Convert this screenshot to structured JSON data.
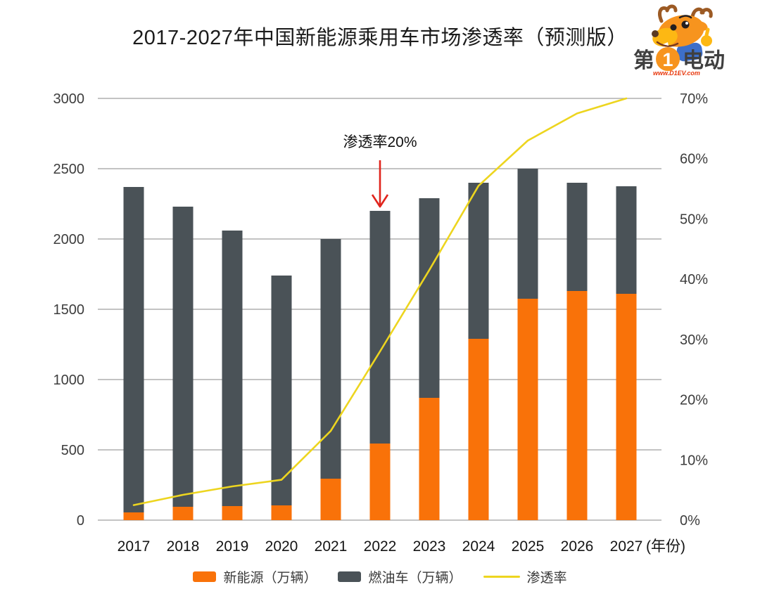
{
  "title": "2017-2027年中国新能源乘用车市场渗透率（预测版）",
  "logo": {
    "brand_prefix": "第",
    "brand_number": "1",
    "brand_suffix": "电动",
    "site_url": "www.D1EV.com"
  },
  "annotation": {
    "text": "渗透率20%",
    "target_year": "2022"
  },
  "legend": [
    {
      "label": "新能源（万辆）",
      "swatch": "bar",
      "color": "#F97209"
    },
    {
      "label": "燃油车（万辆）",
      "swatch": "bar",
      "color": "#4A5257"
    },
    {
      "label": "渗透率",
      "swatch": "line",
      "color": "#EDD51F"
    }
  ],
  "colors": {
    "nev": "#F97209",
    "fuel": "#4A5257",
    "line": "#EDD51F",
    "grid": "#AFAFAF",
    "red": "#E0241C",
    "axis_text": "#3d3d3d"
  },
  "chart_data": {
    "type": "bar",
    "subtype": "stacked-bars-with-line-overlay",
    "title": "2017-2027年中国新能源乘用车市场渗透率（预测版）",
    "categories": [
      "2017",
      "2018",
      "2019",
      "2020",
      "2021",
      "2022",
      "2023",
      "2024",
      "2025",
      "2026",
      "2027"
    ],
    "x_axis_suffix": "(年份)",
    "series": [
      {
        "name": "新能源（万辆）",
        "type": "bar",
        "stack": true,
        "color": "#F97209",
        "values": [
          55,
          95,
          100,
          105,
          295,
          545,
          870,
          1290,
          1575,
          1630,
          1610
        ]
      },
      {
        "name": "燃油车（万辆）",
        "type": "bar",
        "stack": true,
        "color": "#4A5257",
        "values": [
          2315,
          2135,
          1960,
          1635,
          1705,
          1655,
          1420,
          1110,
          925,
          770,
          765
        ]
      },
      {
        "name": "渗透率",
        "type": "line",
        "axis": "right",
        "color": "#EDD51F",
        "values_percent": [
          2.5,
          4.2,
          5.6,
          6.7,
          14.8,
          28,
          41.5,
          55.5,
          63,
          67.5,
          70
        ]
      }
    ],
    "stacked_totals": [
      2370,
      2230,
      2060,
      1740,
      2000,
      2200,
      2290,
      2400,
      2500,
      2400,
      2375
    ],
    "left_axis": {
      "ticks": [
        0,
        500,
        1000,
        1500,
        2000,
        2500,
        3000
      ],
      "range": [
        0,
        3000
      ]
    },
    "right_axis": {
      "ticks": [
        "0%",
        "10%",
        "20%",
        "30%",
        "40%",
        "50%",
        "60%",
        "70%"
      ],
      "range_percent": [
        0,
        70
      ]
    },
    "grid": true,
    "legend_position": "bottom"
  }
}
